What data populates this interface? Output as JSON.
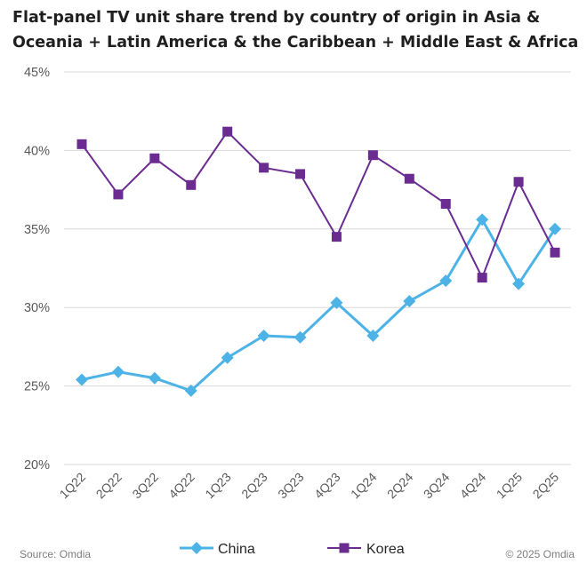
{
  "chart_data": {
    "type": "line",
    "title": "Flat-panel TV unit share trend by country of origin in Asia & Oceania + Latin America & the Caribbean + Middle East & Africa",
    "x": [
      "1Q22",
      "2Q22",
      "3Q22",
      "4Q22",
      "1Q23",
      "2Q23",
      "3Q23",
      "4Q23",
      "1Q24",
      "2Q24",
      "3Q24",
      "4Q24",
      "1Q25",
      "2Q25"
    ],
    "yticks": [
      "20%",
      "25%",
      "30%",
      "35%",
      "40%",
      "45%"
    ],
    "ylim": [
      20,
      45
    ],
    "grid": true,
    "legend_position": "bottom",
    "series": [
      {
        "name": "China",
        "color": "#4db3e6",
        "marker": "diamond",
        "values": [
          25.4,
          25.9,
          25.5,
          24.7,
          26.8,
          28.2,
          28.1,
          30.3,
          28.2,
          30.4,
          31.7,
          35.6,
          31.5,
          35.0
        ]
      },
      {
        "name": "Korea",
        "color": "#6a2c91",
        "marker": "square",
        "values": [
          40.4,
          37.2,
          39.5,
          37.8,
          41.2,
          38.9,
          38.5,
          34.5,
          39.7,
          38.2,
          36.6,
          31.9,
          38.0,
          33.5
        ]
      }
    ]
  },
  "source": "Source: Omdia",
  "copyright": "© 2025 Omdia"
}
